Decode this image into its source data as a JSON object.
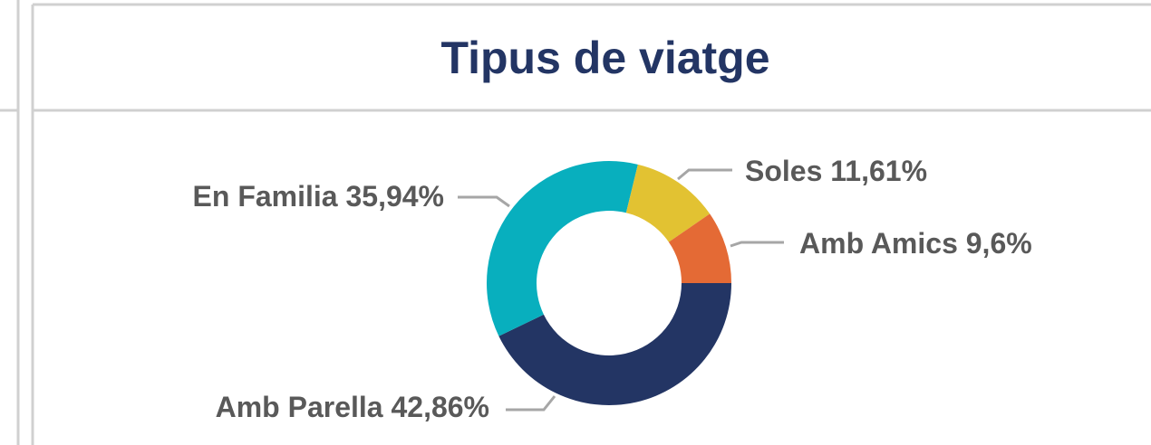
{
  "chart_data": {
    "type": "donut",
    "title": "Tipus de viatge",
    "categories": [
      "Amb Parella",
      "En Familia",
      "Soles",
      "Amb Amics"
    ],
    "values": [
      42.86,
      35.94,
      11.61,
      9.6
    ],
    "value_labels": [
      "42,86%",
      "35,94%",
      "11,61%",
      "9,6%"
    ],
    "colors": [
      "#233564",
      "#08afbe",
      "#e2c232",
      "#e46a35"
    ]
  }
}
